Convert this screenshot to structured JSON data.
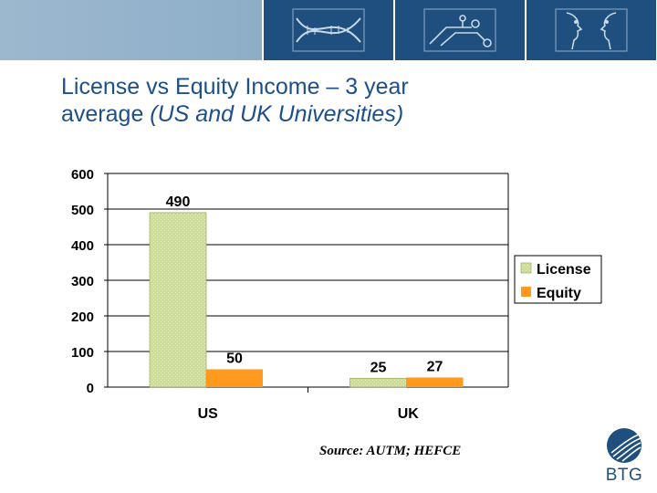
{
  "header": {
    "title_line1": "License vs Equity Income – 3 year",
    "title_line2_plain": "average ",
    "title_line2_italic": "(US and UK Universities)"
  },
  "banner": {
    "icons": [
      "dna-helix-icon",
      "circuit-icon",
      "faces-icon"
    ]
  },
  "chart_data": {
    "type": "bar",
    "categories": [
      "US",
      "UK"
    ],
    "series": [
      {
        "name": "License",
        "values": [
          490,
          25
        ],
        "color": "#ccdf8b"
      },
      {
        "name": "Equity",
        "values": [
          50,
          27
        ],
        "color": "#ff9a1f"
      }
    ],
    "ylim": [
      0,
      600
    ],
    "yticks": [
      0,
      100,
      200,
      300,
      400,
      500,
      600
    ],
    "grid": true,
    "legend": "right"
  },
  "footer": {
    "source": "Source: AUTM; HEFCE",
    "logo_text": "BTG"
  }
}
